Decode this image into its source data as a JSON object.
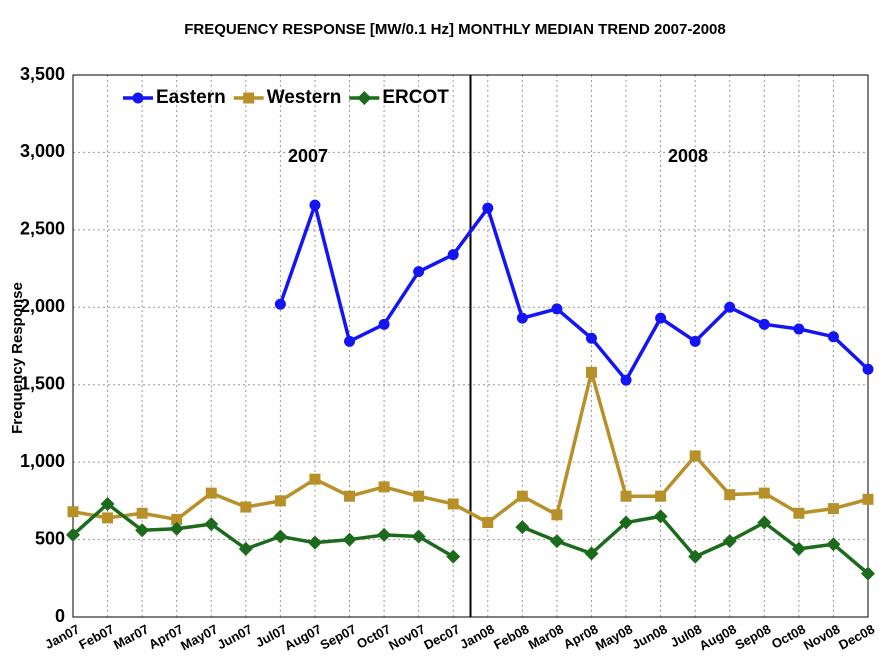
{
  "chart_data": {
    "type": "line",
    "title": "FREQUENCY RESPONSE [MW/0.1 Hz] MONTHLY MEDIAN TREND 2007-2008",
    "y_label": "Frequency Response",
    "annotations": [
      "2007",
      "2008"
    ],
    "categories": [
      "Jan07",
      "Feb07",
      "Mar07",
      "Apr07",
      "May07",
      "Jun07",
      "Jul07",
      "Aug07",
      "Sep07",
      "Oct07",
      "Nov07",
      "Dec07",
      "Jan08",
      "Feb08",
      "Mar08",
      "Apr08",
      "May08",
      "Jun08",
      "Jul08",
      "Aug08",
      "Sep08",
      "Oct08",
      "Nov08",
      "Dec08"
    ],
    "series": [
      {
        "name": "Eastern",
        "color": "#1414f5",
        "marker": "circle",
        "values": [
          null,
          null,
          null,
          null,
          null,
          null,
          2020,
          2660,
          1780,
          1890,
          2230,
          2340,
          2640,
          1930,
          1990,
          1800,
          1530,
          1930,
          1780,
          2000,
          1890,
          1860,
          1810,
          1600
        ]
      },
      {
        "name": "Western",
        "color": "#b8902a",
        "marker": "square",
        "values": [
          680,
          640,
          670,
          630,
          800,
          710,
          750,
          890,
          780,
          840,
          780,
          730,
          610,
          780,
          660,
          1580,
          780,
          780,
          1040,
          790,
          800,
          670,
          700,
          760
        ]
      },
      {
        "name": "ERCOT",
        "color": "#1c6a1c",
        "marker": "diamond",
        "values": [
          530,
          730,
          560,
          570,
          600,
          440,
          520,
          480,
          500,
          530,
          520,
          390,
          null,
          580,
          490,
          410,
          610,
          650,
          390,
          490,
          610,
          440,
          470,
          280
        ]
      }
    ],
    "ylim": [
      0,
      3500
    ],
    "yticks": [
      0,
      500,
      {
        "value": 1000,
        "label": "1,000"
      },
      {
        "value": 1500,
        "label": "1,500"
      },
      {
        "value": 2000,
        "label": "2,000"
      },
      {
        "value": 2500,
        "label": "2,500"
      },
      {
        "value": 3000,
        "label": "3,000"
      },
      {
        "value": 3500,
        "label": "3,500"
      }
    ],
    "grid": true,
    "legend": "top-left"
  }
}
